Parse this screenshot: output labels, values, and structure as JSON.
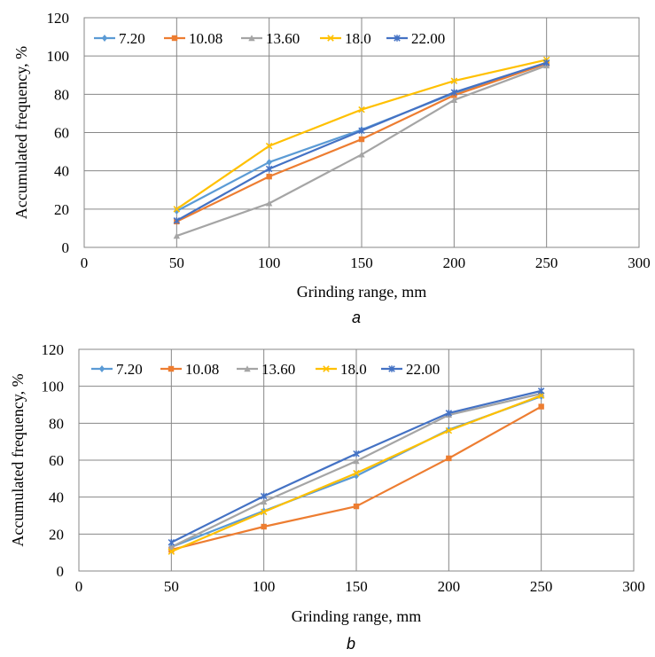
{
  "chart_data": [
    {
      "type": "line",
      "panel_label": "a",
      "xlabel": "Grinding range, mm",
      "ylabel": "Accumulated frequency, %",
      "xlim": [
        0,
        300
      ],
      "ylim": [
        0,
        120
      ],
      "xticks": [
        0,
        50,
        100,
        150,
        200,
        250,
        300
      ],
      "yticks": [
        0,
        20,
        40,
        60,
        80,
        100,
        120
      ],
      "grid": true,
      "legend_position": "top-left",
      "x": [
        50,
        100,
        150,
        200,
        250
      ],
      "series": [
        {
          "name": "7.20",
          "color": "#5B9BD5",
          "marker": "diamond",
          "values": [
            19,
            44.5,
            61.5,
            80.5,
            96
          ]
        },
        {
          "name": "10.08",
          "color": "#ED7D31",
          "marker": "square",
          "values": [
            13.5,
            37,
            56.5,
            79.5,
            96
          ]
        },
        {
          "name": "13.60",
          "color": "#A5A5A5",
          "marker": "triangle",
          "values": [
            6,
            23,
            48.5,
            77,
            95
          ]
        },
        {
          "name": "18.0",
          "color": "#FFC000",
          "marker": "x",
          "values": [
            20,
            53,
            72,
            87,
            98
          ]
        },
        {
          "name": "22.00",
          "color": "#4472C4",
          "marker": "star",
          "values": [
            14,
            41,
            61,
            81,
            96.5
          ]
        }
      ]
    },
    {
      "type": "line",
      "panel_label": "b",
      "xlabel": "Grinding range, mm",
      "ylabel": "Accumulated frequency, %",
      "xlim": [
        0,
        300
      ],
      "ylim": [
        0,
        120
      ],
      "xticks": [
        0,
        50,
        100,
        150,
        200,
        250,
        300
      ],
      "yticks": [
        0,
        20,
        40,
        60,
        80,
        100,
        120
      ],
      "grid": true,
      "legend_position": "top-left",
      "x": [
        50,
        100,
        150,
        200,
        250
      ],
      "series": [
        {
          "name": "7.20",
          "color": "#5B9BD5",
          "marker": "diamond",
          "values": [
            13,
            32.5,
            51.5,
            76.5,
            94.5
          ]
        },
        {
          "name": "10.08",
          "color": "#ED7D31",
          "marker": "square",
          "values": [
            11.5,
            24,
            35,
            61,
            89
          ]
        },
        {
          "name": "13.60",
          "color": "#A5A5A5",
          "marker": "triangle",
          "values": [
            13,
            37.5,
            59.5,
            84.5,
            96
          ]
        },
        {
          "name": "18.0",
          "color": "#FFC000",
          "marker": "x",
          "values": [
            10.5,
            32,
            53,
            76,
            95
          ]
        },
        {
          "name": "22.00",
          "color": "#4472C4",
          "marker": "star",
          "values": [
            15.5,
            40.5,
            63.5,
            85.5,
            97.5
          ]
        }
      ]
    }
  ]
}
